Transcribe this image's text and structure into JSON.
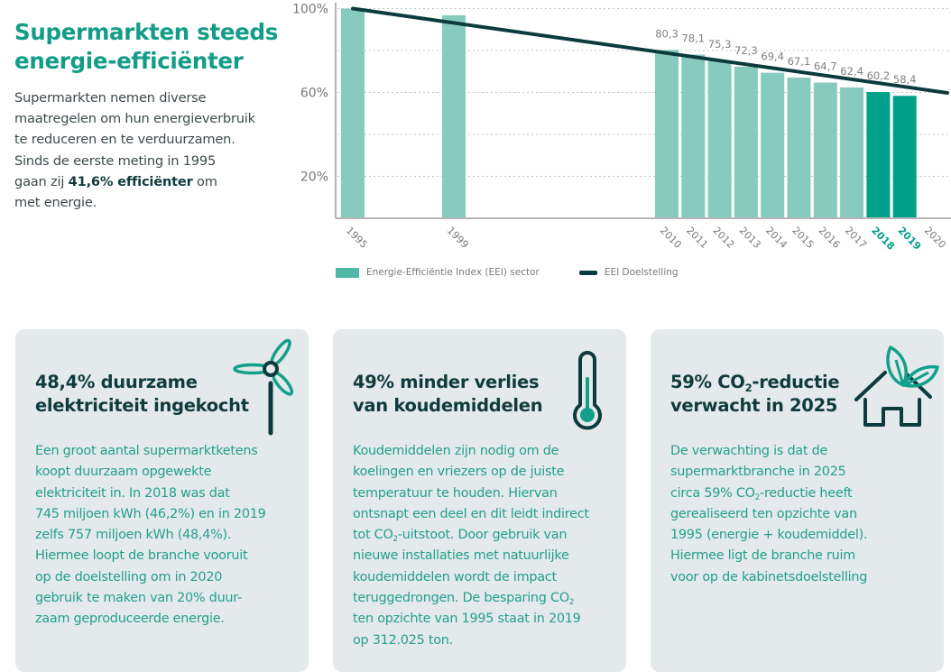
{
  "intro": {
    "title_line1": "Supermarkten steeds",
    "title_line2": "energie-efficiënter",
    "text_lines": [
      "Supermarkten nemen diverse",
      "maatregelen om hun energieverbruik",
      "te reduceren en te verduurzamen.",
      "Sinds de eerste meting in 1995"
    ],
    "text_pre_bold": "gaan zij ",
    "text_bold": "41,6% efficiënter",
    "text_post_bold": " om",
    "text_last": "met energie."
  },
  "colors": {
    "accent": "#139d88",
    "bar": "#86cbbd",
    "bar_highlight": "#00a08a",
    "target_line": "#0c3b3d",
    "card_bg": "#e4e9ec",
    "card_text": "#22a08c",
    "heading_dark": "#0f3b3d"
  },
  "chart_data": {
    "type": "bar",
    "title": "",
    "xlabel": "",
    "ylabel": "",
    "ylim": [
      0,
      100
    ],
    "y_ticks": [
      "100%",
      "60%",
      "20%"
    ],
    "y_tick_values": [
      100,
      60,
      20
    ],
    "gridlines": [
      100,
      80,
      60,
      40,
      20
    ],
    "grid": true,
    "categories": [
      "1995",
      "1999",
      "2010",
      "2011",
      "2012",
      "2013",
      "2014",
      "2015",
      "2016",
      "2017",
      "2018",
      "2019",
      "2020"
    ],
    "highlighted": [
      "2018",
      "2019"
    ],
    "series": [
      {
        "name": "Energie-Efficiëntie Index (EEI) sector",
        "type": "bar",
        "values": [
          100,
          96.8,
          80.3,
          78.1,
          75.3,
          72.3,
          69.4,
          67.1,
          64.7,
          62.4,
          60.2,
          58.4,
          null
        ],
        "labels": [
          "",
          "",
          "80,3",
          "78,1",
          "75,3",
          "72,3",
          "69,4",
          "67,1",
          "64,7",
          "62,4",
          "60,2",
          "58,4",
          ""
        ]
      },
      {
        "name": "EEI Doelstelling",
        "type": "line",
        "points": [
          {
            "x": "1995",
            "y": 100
          },
          {
            "x": "2020",
            "y": 59.8
          }
        ]
      }
    ],
    "legend_position": "bottom-left"
  },
  "cards": [
    {
      "title_line1": "48,4% duurzame",
      "title_line2": "elektriciteit ingekocht",
      "icon": "wind-turbine-icon",
      "body_lines": [
        "Een groot aantal supermarktketens",
        "koopt duurzaam opgewekte",
        "elektriciteit in. In 2018 was dat",
        "745 miljoen kWh (46,2%) en in 2019",
        "zelfs 757 miljoen kWh (48,4%).",
        "Hiermee loopt de branche vooruit",
        "op de doelstelling om in 2020",
        "gebruik te maken van 20% duur-",
        "zaam geproduceerde energie."
      ]
    },
    {
      "title_line1": "49% minder verlies",
      "title_line2": "van koudemiddelen",
      "icon": "thermometer-icon",
      "body_lines": [
        "Koudemiddelen zijn nodig om de",
        "koelingen en vriezers op de juiste",
        "temperatuur te houden. Hiervan",
        "ontsnapt een deel en dit leidt indirect"
      ],
      "line5_pre": "tot CO",
      "line5_sub": "2",
      "line5_post": "-uitstoot. Door gebruik van",
      "body_lines_b": [
        "nieuwe installaties met natuurlijke",
        "koudemiddelen wordt de impact"
      ],
      "line8_pre": "teruggedrongen. De besparing CO",
      "line8_sub": "2",
      "body_lines_c": [
        "ten opzichte van 1995 staat in 2019",
        "op 312.025 ton."
      ]
    },
    {
      "title_pre": "59% CO",
      "title_sub": "2",
      "title_post": "-reductie",
      "title_line2": "verwacht in 2025",
      "icon": "house-leaf-icon",
      "body_lines": [
        "De verwachting is dat de",
        "supermarktbranche in 2025"
      ],
      "line3_pre": "circa 59% CO",
      "line3_sub": "2",
      "line3_post": "-reductie heeft",
      "body_lines_b": [
        "gerealiseerd ten opzichte van",
        "1995 (energie + koudemiddel).",
        "Hiermee ligt de branche ruim",
        "voor op de kabinetsdoelstelling"
      ]
    }
  ]
}
